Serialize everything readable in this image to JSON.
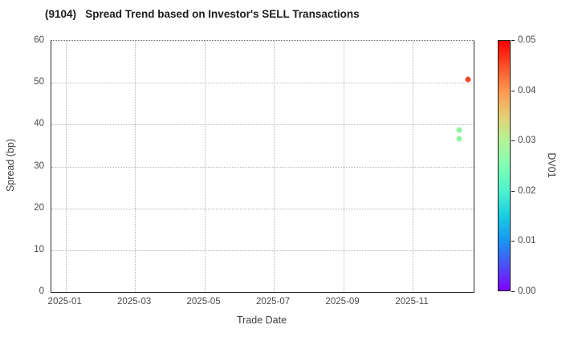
{
  "title": "(9104)   Spread Trend based on Investor's SELL Transactions",
  "chart_data": {
    "type": "scatter",
    "title": "(9104)   Spread Trend based on Investor's SELL Transactions",
    "xlabel": "Trade Date",
    "ylabel": "Spread (bp)",
    "xlim": [
      "2024-12-19",
      "2025-12-24"
    ],
    "ylim": [
      0,
      60
    ],
    "yticks": [
      0,
      10,
      20,
      30,
      40,
      50,
      60
    ],
    "xticks": [
      "2025-01",
      "2025-03",
      "2025-05",
      "2025-07",
      "2025-09",
      "2025-11"
    ],
    "grid": true,
    "legend_position": "none",
    "points": [
      {
        "date": "2025-12-19",
        "spread_bp": 50.8,
        "dv01": 0.046,
        "color": "#F7482D"
      },
      {
        "date": "2025-12-11",
        "spread_bp": 38.7,
        "dv01": 0.026,
        "color": "#8FF4A2"
      },
      {
        "date": "2025-12-11",
        "spread_bp": 36.7,
        "dv01": 0.026,
        "color": "#8FF4A2"
      }
    ],
    "colorbar": {
      "label": "DV01",
      "min": 0.0,
      "max": 0.05,
      "ticks": [
        "0.00",
        "0.01",
        "0.02",
        "0.03",
        "0.04",
        "0.05"
      ],
      "colormap": "rainbow",
      "gradient": [
        {
          "stop": 0.0,
          "color": "#8000FF"
        },
        {
          "stop": 0.1,
          "color": "#4D4FFC"
        },
        {
          "stop": 0.2,
          "color": "#1996F3"
        },
        {
          "stop": 0.3,
          "color": "#19CEE3"
        },
        {
          "stop": 0.4,
          "color": "#4DF3CE"
        },
        {
          "stop": 0.5,
          "color": "#80FFB4"
        },
        {
          "stop": 0.6,
          "color": "#B3F396"
        },
        {
          "stop": 0.7,
          "color": "#E6CE74"
        },
        {
          "stop": 0.8,
          "color": "#FF964F"
        },
        {
          "stop": 0.9,
          "color": "#FF4F28"
        },
        {
          "stop": 1.0,
          "color": "#FF0000"
        }
      ]
    }
  }
}
